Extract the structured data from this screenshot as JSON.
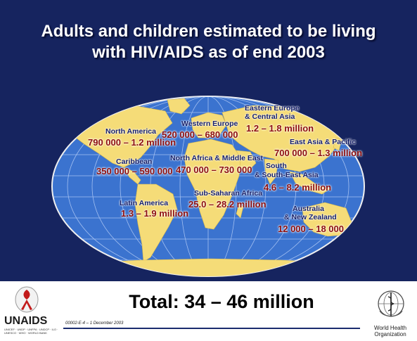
{
  "title": {
    "line1": "Adults and children estimated to be living",
    "line2": "with HIV/AIDS as of end 2003"
  },
  "regions": {
    "north_america": {
      "name": "North America",
      "value": "790 000 – 1.2 million"
    },
    "caribbean": {
      "name": "Caribbean",
      "value": "350 000 – 590 000"
    },
    "latin_america": {
      "name": "Latin America",
      "value": "1.3 – 1.9 million"
    },
    "western_europe": {
      "name": "Western Europe",
      "value": "520 000 – 680 000"
    },
    "north_africa": {
      "name": "North Africa & Middle East",
      "value": "470 000 – 730 000"
    },
    "sub_saharan": {
      "name": "Sub-Saharan Africa",
      "value": "25.0 – 28.2 million"
    },
    "eastern_europe": {
      "name_line1": "Eastern Europe",
      "name_line2": "& Central Asia",
      "value": "1.2 – 1.8 million"
    },
    "east_asia": {
      "name": "East Asia & Pacific",
      "value": "700 000 – 1.3 million"
    },
    "south_asia": {
      "name_line1": "South",
      "name_line2": "& South-East Asia",
      "value": "4.6 – 8.2 million"
    },
    "australia": {
      "name_line1": "Australia",
      "name_line2": "& New Zealand",
      "value": "12 000 – 18 000"
    }
  },
  "footer": {
    "total": "Total: 34 – 46 million",
    "slide_code": "00002-E-4 – 1 December 2003",
    "unaids_logo_text": "UNAIDS",
    "unaids_subtext": "UNICEF · UNDP · UNFPA · UNDCP · ILO · UNESCO · WHO · WORLD BANK",
    "who_line1": "World Health",
    "who_line2": "Organization"
  },
  "colors": {
    "background": "#16245f",
    "ocean": "#3b73cf",
    "land": "#f5dc78",
    "value_text": "#8e0f0f",
    "region_text": "#17206b"
  },
  "icons": [
    "unaids-ribbon-icon",
    "who-emblem-icon"
  ]
}
